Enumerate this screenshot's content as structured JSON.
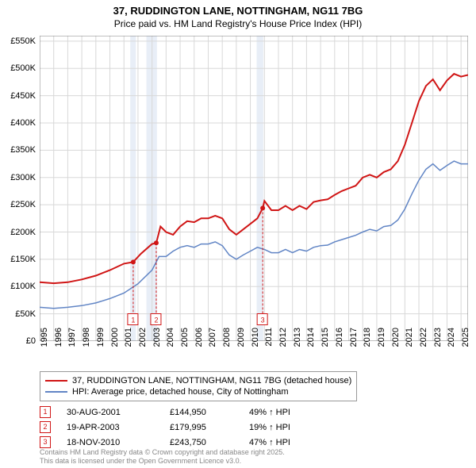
{
  "title_line1": "37, RUDDINGTON LANE, NOTTINGHAM, NG11 7BG",
  "title_line2": "Price paid vs. HM Land Registry's House Price Index (HPI)",
  "chart": {
    "type": "line",
    "background_color": "#ffffff",
    "grid_color": "#d8d8d8",
    "axis_color": "#808080",
    "band_color": "#e8eef7",
    "xlim": [
      1995,
      2025.5
    ],
    "ylim": [
      0,
      560000
    ],
    "ytick_step": 50000,
    "ytick_labels": [
      "£0",
      "£50K",
      "£100K",
      "£150K",
      "£200K",
      "£250K",
      "£300K",
      "£350K",
      "£400K",
      "£450K",
      "£500K",
      "£550K"
    ],
    "xtick_years": [
      1995,
      1996,
      1997,
      1998,
      1999,
      2000,
      2001,
      2002,
      2003,
      2004,
      2005,
      2006,
      2007,
      2008,
      2009,
      2010,
      2011,
      2012,
      2013,
      2014,
      2015,
      2016,
      2017,
      2018,
      2019,
      2020,
      2021,
      2022,
      2023,
      2024,
      2025
    ],
    "sale_bands": [
      {
        "start": 2001.45,
        "end": 2001.85
      },
      {
        "start": 2002.6,
        "end": 2003.35
      },
      {
        "start": 2010.45,
        "end": 2010.92
      }
    ],
    "markers": [
      {
        "label": "1",
        "x": 2001.66,
        "y": 144950,
        "y_box": 40000,
        "color": "#d01515"
      },
      {
        "label": "2",
        "x": 2003.3,
        "y": 179995,
        "y_box": 40000,
        "color": "#d01515"
      },
      {
        "label": "3",
        "x": 2010.88,
        "y": 243750,
        "y_box": 40000,
        "color": "#d01515"
      }
    ],
    "series": [
      {
        "name": "price_paid",
        "label": "37, RUDDINGTON LANE, NOTTINGHAM, NG11 7BG (detached house)",
        "color": "#d01515",
        "line_width": 2,
        "data": [
          [
            1995,
            108000
          ],
          [
            1996,
            106000
          ],
          [
            1997,
            108000
          ],
          [
            1998,
            113000
          ],
          [
            1999,
            120000
          ],
          [
            2000,
            130000
          ],
          [
            2001,
            142000
          ],
          [
            2001.66,
            144950
          ],
          [
            2002.2,
            160000
          ],
          [
            2003,
            178000
          ],
          [
            2003.3,
            179995
          ],
          [
            2003.6,
            210000
          ],
          [
            2004,
            200000
          ],
          [
            2004.5,
            195000
          ],
          [
            2005,
            210000
          ],
          [
            2005.5,
            220000
          ],
          [
            2006,
            218000
          ],
          [
            2006.5,
            225000
          ],
          [
            2007,
            225000
          ],
          [
            2007.5,
            230000
          ],
          [
            2008,
            225000
          ],
          [
            2008.5,
            205000
          ],
          [
            2009,
            195000
          ],
          [
            2009.5,
            205000
          ],
          [
            2010,
            215000
          ],
          [
            2010.5,
            225000
          ],
          [
            2010.88,
            243750
          ],
          [
            2011,
            257000
          ],
          [
            2011.5,
            240000
          ],
          [
            2012,
            240000
          ],
          [
            2012.5,
            248000
          ],
          [
            2013,
            240000
          ],
          [
            2013.5,
            248000
          ],
          [
            2014,
            242000
          ],
          [
            2014.5,
            255000
          ],
          [
            2015,
            258000
          ],
          [
            2015.5,
            260000
          ],
          [
            2016,
            268000
          ],
          [
            2016.5,
            275000
          ],
          [
            2017,
            280000
          ],
          [
            2017.5,
            285000
          ],
          [
            2018,
            300000
          ],
          [
            2018.5,
            305000
          ],
          [
            2019,
            300000
          ],
          [
            2019.5,
            310000
          ],
          [
            2020,
            315000
          ],
          [
            2020.5,
            330000
          ],
          [
            2021,
            360000
          ],
          [
            2021.5,
            400000
          ],
          [
            2022,
            440000
          ],
          [
            2022.5,
            468000
          ],
          [
            2023,
            480000
          ],
          [
            2023.5,
            460000
          ],
          [
            2024,
            478000
          ],
          [
            2024.5,
            490000
          ],
          [
            2025,
            485000
          ],
          [
            2025.5,
            488000
          ]
        ]
      },
      {
        "name": "hpi",
        "label": "HPI: Average price, detached house, City of Nottingham",
        "color": "#6185c5",
        "line_width": 1.5,
        "data": [
          [
            1995,
            62000
          ],
          [
            1996,
            60000
          ],
          [
            1997,
            62000
          ],
          [
            1998,
            65000
          ],
          [
            1999,
            70000
          ],
          [
            2000,
            78000
          ],
          [
            2001,
            88000
          ],
          [
            2002,
            105000
          ],
          [
            2003,
            130000
          ],
          [
            2003.5,
            155000
          ],
          [
            2004,
            155000
          ],
          [
            2004.5,
            165000
          ],
          [
            2005,
            172000
          ],
          [
            2005.5,
            175000
          ],
          [
            2006,
            172000
          ],
          [
            2006.5,
            178000
          ],
          [
            2007,
            178000
          ],
          [
            2007.5,
            182000
          ],
          [
            2008,
            175000
          ],
          [
            2008.5,
            158000
          ],
          [
            2009,
            150000
          ],
          [
            2009.5,
            158000
          ],
          [
            2010,
            165000
          ],
          [
            2010.5,
            172000
          ],
          [
            2011,
            168000
          ],
          [
            2011.5,
            162000
          ],
          [
            2012,
            162000
          ],
          [
            2012.5,
            168000
          ],
          [
            2013,
            162000
          ],
          [
            2013.5,
            168000
          ],
          [
            2014,
            165000
          ],
          [
            2014.5,
            172000
          ],
          [
            2015,
            175000
          ],
          [
            2015.5,
            176000
          ],
          [
            2016,
            182000
          ],
          [
            2016.5,
            186000
          ],
          [
            2017,
            190000
          ],
          [
            2017.5,
            194000
          ],
          [
            2018,
            200000
          ],
          [
            2018.5,
            205000
          ],
          [
            2019,
            202000
          ],
          [
            2019.5,
            210000
          ],
          [
            2020,
            212000
          ],
          [
            2020.5,
            222000
          ],
          [
            2021,
            242000
          ],
          [
            2021.5,
            270000
          ],
          [
            2022,
            295000
          ],
          [
            2022.5,
            315000
          ],
          [
            2023,
            325000
          ],
          [
            2023.5,
            313000
          ],
          [
            2024,
            322000
          ],
          [
            2024.5,
            330000
          ],
          [
            2025,
            325000
          ],
          [
            2025.5,
            325000
          ]
        ]
      }
    ]
  },
  "legend": {
    "items": [
      {
        "color": "#d01515",
        "width": 2,
        "label": "37, RUDDINGTON LANE, NOTTINGHAM, NG11 7BG (detached house)"
      },
      {
        "color": "#6185c5",
        "width": 1.5,
        "label": "HPI: Average price, detached house, City of Nottingham"
      }
    ]
  },
  "sales": [
    {
      "num": "1",
      "date": "30-AUG-2001",
      "price": "£144,950",
      "hpi": "49% ↑ HPI"
    },
    {
      "num": "2",
      "date": "19-APR-2003",
      "price": "£179,995",
      "hpi": "19% ↑ HPI"
    },
    {
      "num": "3",
      "date": "18-NOV-2010",
      "price": "£243,750",
      "hpi": "47% ↑ HPI"
    }
  ],
  "sale_marker_color": "#d01515",
  "footer_line1": "Contains HM Land Registry data © Crown copyright and database right 2025.",
  "footer_line2": "This data is licensed under the Open Government Licence v3.0."
}
